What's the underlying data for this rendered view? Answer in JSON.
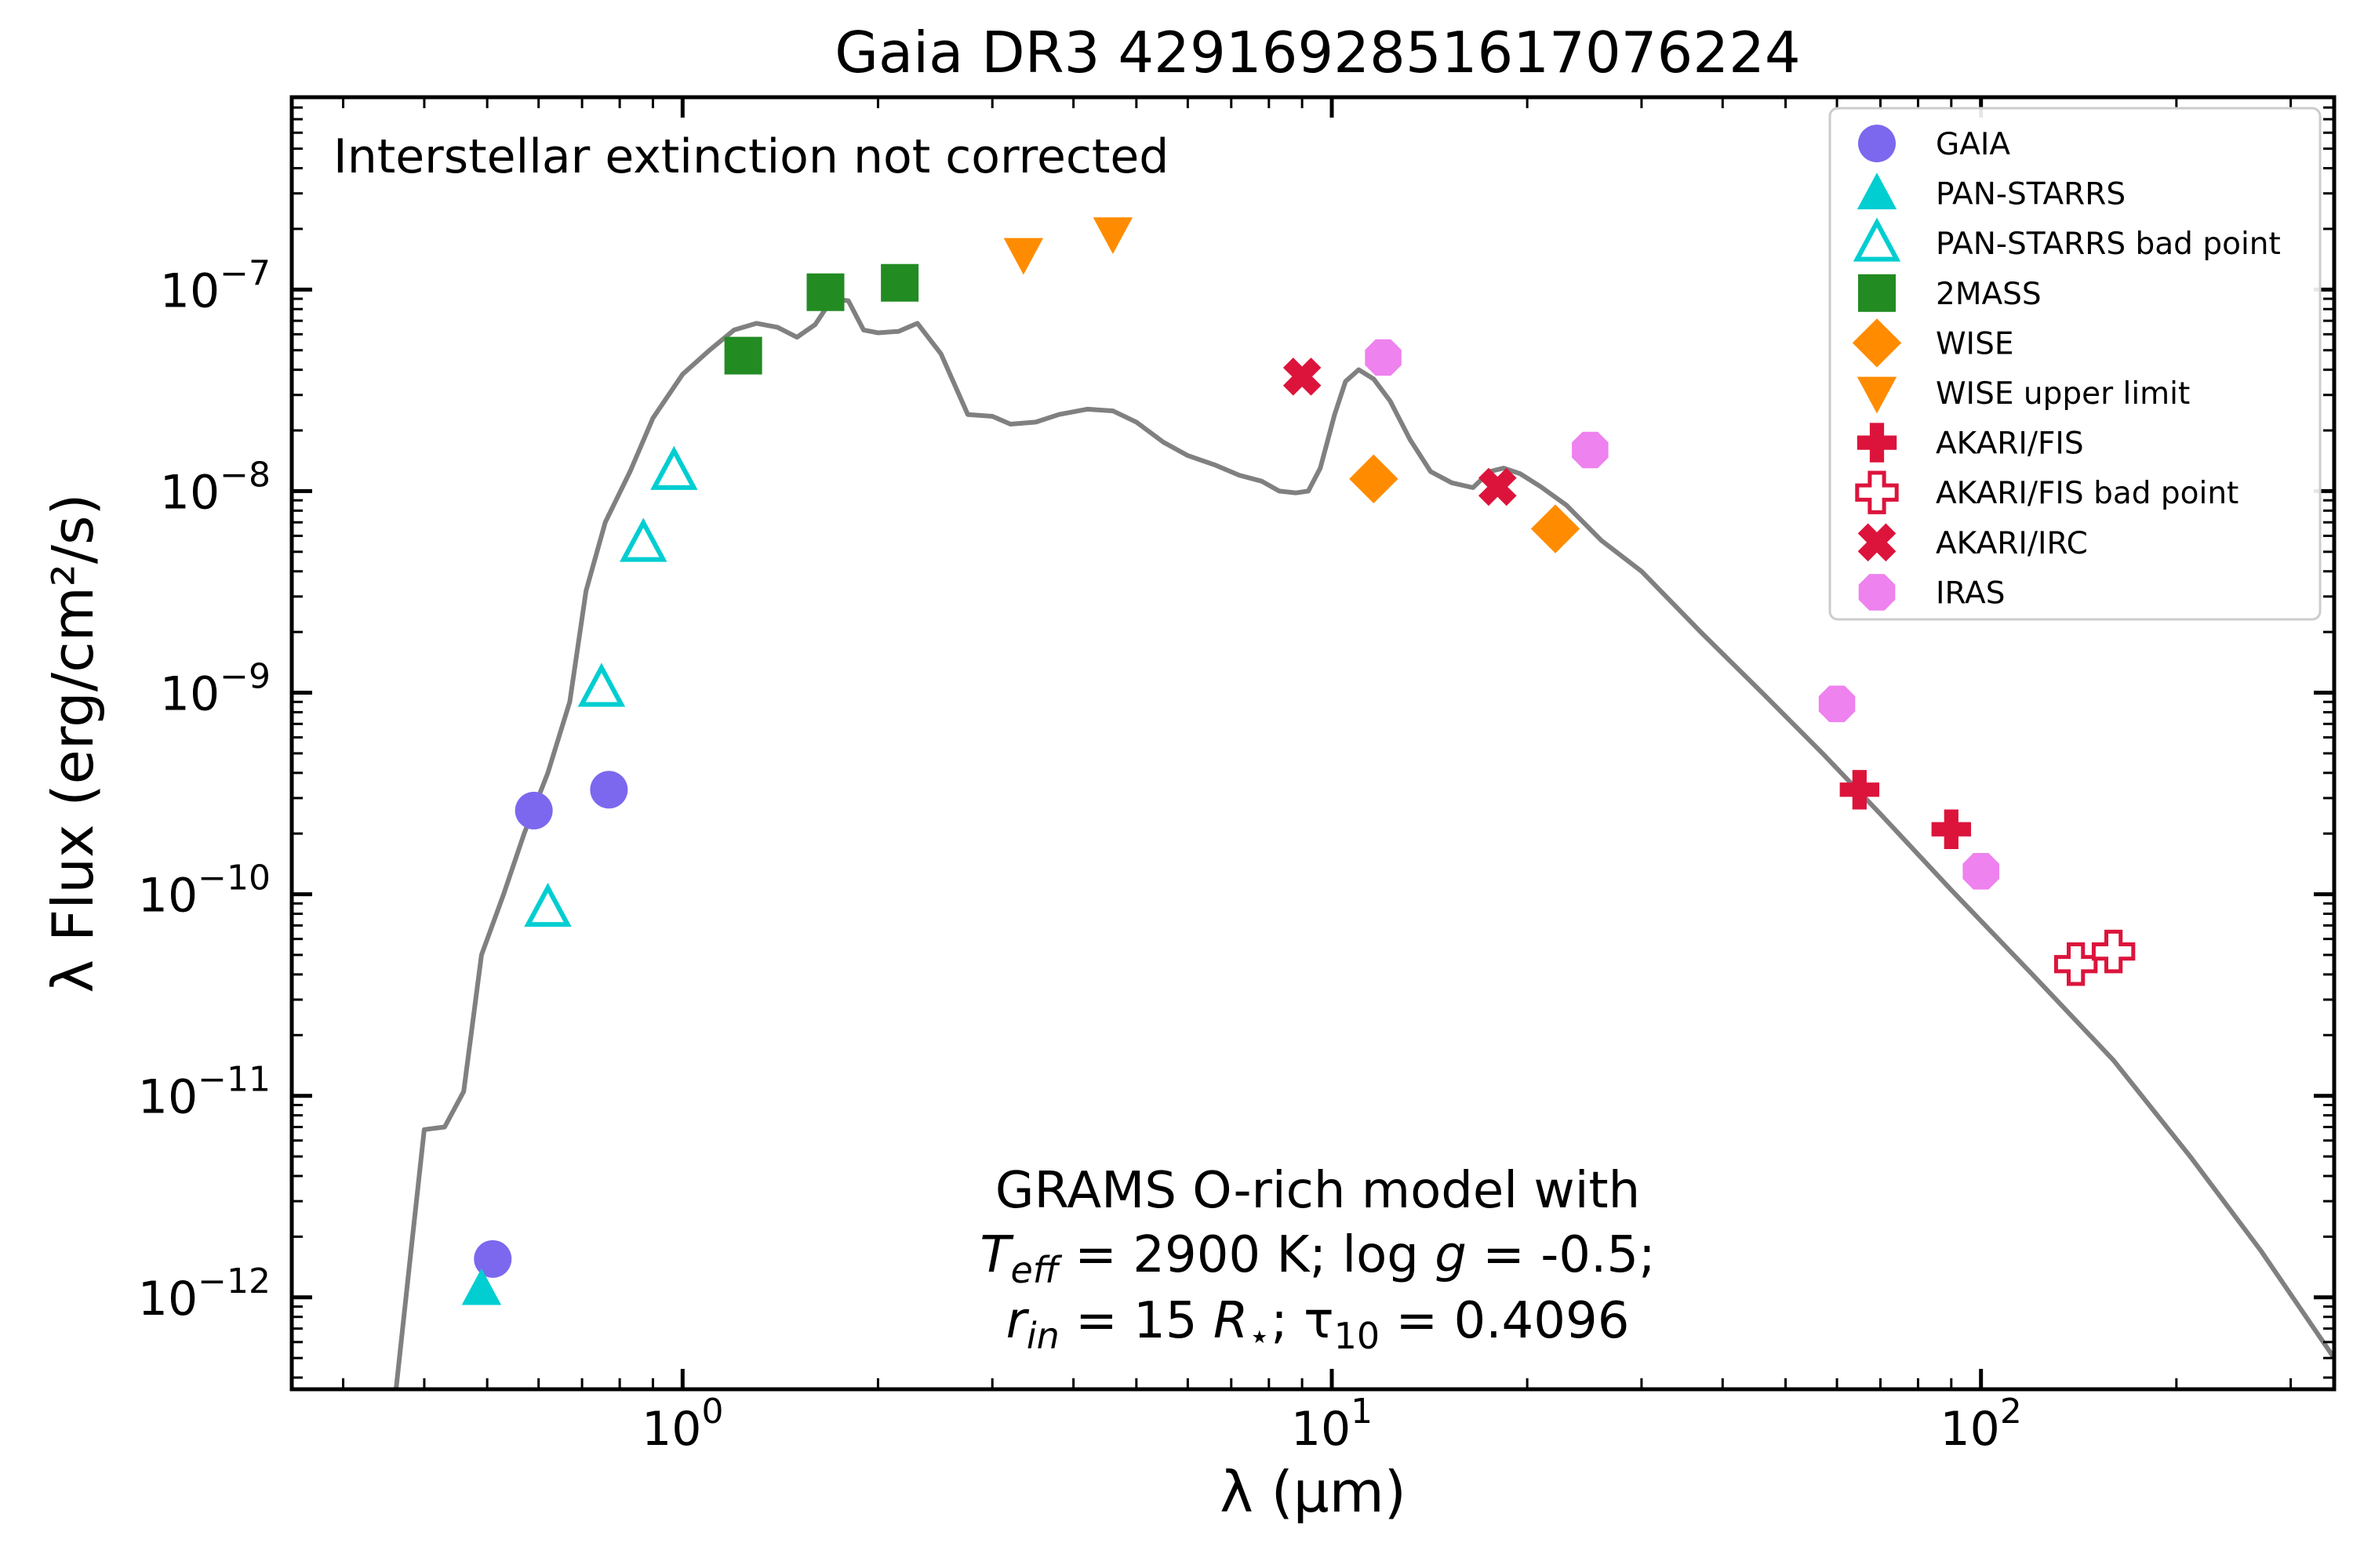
{
  "chart_data": {
    "type": "scatter",
    "title": "Gaia DR3 4291692851617076224",
    "xlabel": "λ (μm)",
    "ylabel": "λ Flux (erg/cm²/s)",
    "xscale": "log",
    "yscale": "log",
    "xlim": [
      0.25,
      350
    ],
    "ylim": [
      3.5e-13,
      9e-07
    ],
    "x_ticks": [
      {
        "value": 1,
        "base": "10",
        "exp": "0"
      },
      {
        "value": 10,
        "base": "10",
        "exp": "1"
      },
      {
        "value": 100,
        "base": "10",
        "exp": "2"
      }
    ],
    "y_ticks": [
      {
        "value": 1e-12,
        "base": "10",
        "exp": "−12"
      },
      {
        "value": 1e-11,
        "base": "10",
        "exp": "−11"
      },
      {
        "value": 1e-10,
        "base": "10",
        "exp": "−10"
      },
      {
        "value": 1e-09,
        "base": "10",
        "exp": "−9"
      },
      {
        "value": 1e-08,
        "base": "10",
        "exp": "−8"
      },
      {
        "value": 1e-07,
        "base": "10",
        "exp": "−7"
      }
    ],
    "annotation_top": "Interstellar extinction not corrected",
    "model_text": {
      "line1": "GRAMS O-rich model with",
      "line2": {
        "T": "T",
        "T_sub": "eff",
        "a": " = 2900 K; log ",
        "g": "g",
        "b": " = -0.5;"
      },
      "line3": {
        "r": "r",
        "r_sub": "in",
        "a": " = 15 ",
        "R": "R",
        "R_sub": "⋆",
        "b": "; τ",
        "tau_sub": "10",
        "c": " = 0.4096"
      }
    },
    "legend_position": "top-right",
    "model": {
      "color": "#808080",
      "points": [
        [
          0.36,
          3e-13
        ],
        [
          0.38,
          1.5e-12
        ],
        [
          0.4,
          6.8e-12
        ],
        [
          0.43,
          7e-12
        ],
        [
          0.46,
          1.05e-11
        ],
        [
          0.49,
          5e-11
        ],
        [
          0.53,
          1e-10
        ],
        [
          0.57,
          2e-10
        ],
        [
          0.62,
          4e-10
        ],
        [
          0.67,
          9e-10
        ],
        [
          0.71,
          3.2e-09
        ],
        [
          0.76,
          7e-09
        ],
        [
          0.83,
          1.25e-08
        ],
        [
          0.9,
          2.3e-08
        ],
        [
          1.0,
          3.8e-08
        ],
        [
          1.1,
          5e-08
        ],
        [
          1.2,
          6.3e-08
        ],
        [
          1.3,
          6.8e-08
        ],
        [
          1.4,
          6.5e-08
        ],
        [
          1.5,
          5.8e-08
        ],
        [
          1.6,
          6.7e-08
        ],
        [
          1.7,
          9e-08
        ],
        [
          1.8,
          8.8e-08
        ],
        [
          1.9,
          6.3e-08
        ],
        [
          2.0,
          6.1e-08
        ],
        [
          2.15,
          6.2e-08
        ],
        [
          2.3,
          6.8e-08
        ],
        [
          2.5,
          4.8e-08
        ],
        [
          2.75,
          2.4e-08
        ],
        [
          3.0,
          2.35e-08
        ],
        [
          3.2,
          2.15e-08
        ],
        [
          3.5,
          2.2e-08
        ],
        [
          3.8,
          2.4e-08
        ],
        [
          4.2,
          2.55e-08
        ],
        [
          4.6,
          2.5e-08
        ],
        [
          5.0,
          2.2e-08
        ],
        [
          5.5,
          1.75e-08
        ],
        [
          6.0,
          1.5e-08
        ],
        [
          6.6,
          1.35e-08
        ],
        [
          7.2,
          1.2e-08
        ],
        [
          7.8,
          1.12e-08
        ],
        [
          8.3,
          1e-08
        ],
        [
          8.8,
          9.8e-09
        ],
        [
          9.2,
          1e-08
        ],
        [
          9.6,
          1.3e-08
        ],
        [
          10.1,
          2.4e-08
        ],
        [
          10.5,
          3.5e-08
        ],
        [
          11.0,
          4e-08
        ],
        [
          11.6,
          3.6e-08
        ],
        [
          12.3,
          2.8e-08
        ],
        [
          13.2,
          1.8e-08
        ],
        [
          14.2,
          1.25e-08
        ],
        [
          15.3,
          1.1e-08
        ],
        [
          16.5,
          1.04e-08
        ],
        [
          17.5,
          1.25e-08
        ],
        [
          18.4,
          1.3e-08
        ],
        [
          19.5,
          1.22e-08
        ],
        [
          21,
          1.05e-08
        ],
        [
          23,
          8.5e-09
        ],
        [
          26,
          5.7e-09
        ],
        [
          30,
          4e-09
        ],
        [
          37,
          2e-09
        ],
        [
          46,
          1e-09
        ],
        [
          57,
          5e-10
        ],
        [
          70,
          2.5e-10
        ],
        [
          90,
          1.05e-10
        ],
        [
          120,
          4e-11
        ],
        [
          160,
          1.5e-11
        ],
        [
          210,
          5e-12
        ],
        [
          270,
          1.7e-12
        ],
        [
          350,
          5e-13
        ]
      ]
    },
    "series": [
      {
        "name": "GAIA",
        "marker": "circle",
        "fill": true,
        "color": "#7b68ee",
        "points": [
          [
            0.51,
            1.55e-12
          ],
          [
            0.59,
            2.6e-10
          ],
          [
            0.77,
            3.3e-10
          ]
        ]
      },
      {
        "name": "PAN-STARRS",
        "marker": "triangle-up",
        "fill": true,
        "color": "#00ced1",
        "points": [
          [
            0.49,
            1.1e-12
          ]
        ]
      },
      {
        "name": "PAN-STARRS bad point",
        "marker": "triangle-up",
        "fill": false,
        "color": "#00ced1",
        "points": [
          [
            0.62,
            8.5e-11
          ],
          [
            0.75,
            1.05e-09
          ],
          [
            0.87,
            5.5e-09
          ],
          [
            0.97,
            1.25e-08
          ]
        ]
      },
      {
        "name": "2MASS",
        "marker": "square",
        "fill": true,
        "color": "#228b22",
        "points": [
          [
            1.24,
            4.7e-08
          ],
          [
            1.66,
            9.7e-08
          ],
          [
            2.16,
            1.08e-07
          ]
        ]
      },
      {
        "name": "WISE",
        "marker": "diamond",
        "fill": true,
        "color": "#ff8c00",
        "points": [
          [
            11.6,
            1.15e-08
          ],
          [
            22.1,
            6.5e-09
          ]
        ]
      },
      {
        "name": "WISE upper limit",
        "marker": "triangle-down",
        "fill": true,
        "color": "#ff8c00",
        "points": [
          [
            3.35,
            1.5e-07
          ],
          [
            4.6,
            1.9e-07
          ]
        ]
      },
      {
        "name": "AKARI/FIS",
        "marker": "plus",
        "fill": true,
        "color": "#dc143c",
        "points": [
          [
            65,
            3.3e-10
          ],
          [
            90,
            2.1e-10
          ]
        ]
      },
      {
        "name": "AKARI/FIS bad point",
        "marker": "plus",
        "fill": false,
        "color": "#dc143c",
        "points": [
          [
            140,
            4.5e-11
          ],
          [
            160,
            5.2e-11
          ]
        ]
      },
      {
        "name": "AKARI/IRC",
        "marker": "x",
        "fill": true,
        "color": "#dc143c",
        "points": [
          [
            9,
            3.7e-08
          ],
          [
            18,
            1.05e-08
          ]
        ]
      },
      {
        "name": "IRAS",
        "marker": "octagon",
        "fill": true,
        "color": "#ee82ee",
        "points": [
          [
            12,
            4.6e-08
          ],
          [
            25,
            1.6e-08
          ],
          [
            60,
            8.8e-10
          ],
          [
            100,
            1.3e-10
          ]
        ]
      }
    ]
  }
}
